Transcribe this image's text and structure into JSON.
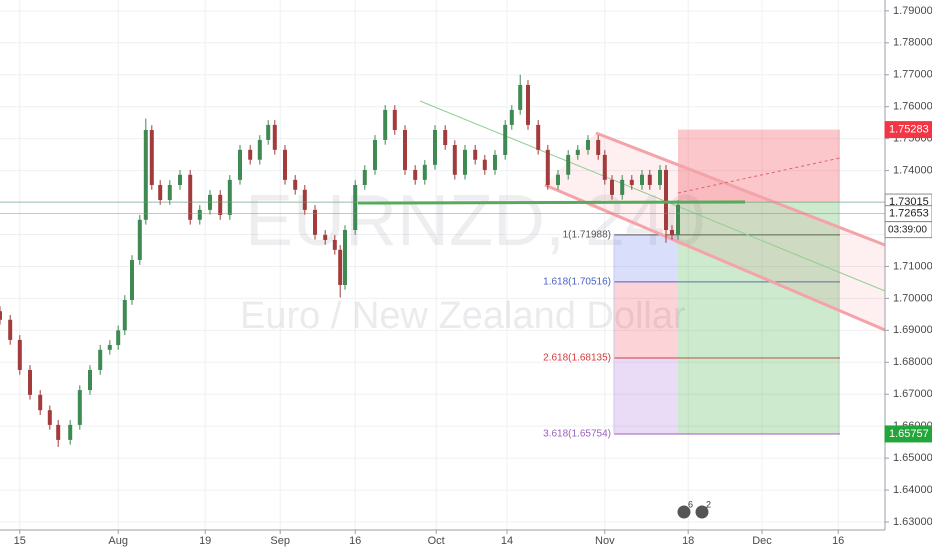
{
  "chart_data": {
    "type": "candlestick",
    "watermark": {
      "symbol": "EURNZD, 240",
      "name": "Euro / New Zealand Dollar"
    },
    "x": [
      0,
      1.7,
      3.3,
      5,
      6.7,
      8.3,
      9.7,
      11.7,
      13.3,
      15,
      16.7,
      18.3,
      19.7,
      20.8,
      22,
      23.3,
      24.3,
      25.3,
      26.7,
      28.3,
      30,
      31.7,
      33.3,
      35,
      36.7,
      38.3,
      40,
      41.7,
      43.3,
      44.7,
      45.8,
      47.5,
      49.2,
      50.8,
      52.5,
      54.2,
      55.8,
      56.7,
      57.5,
      59.2,
      60.8,
      62.5,
      64.2,
      65.8,
      67.5,
      69.2,
      70.8,
      72.5,
      74.2,
      75.8,
      77.5,
      79.2,
      80.8,
      82.5,
      84.2,
      85.3,
      86.7,
      88,
      89.7,
      91.3,
      93,
      94.7,
      96.3,
      98,
      99.7,
      100.8,
      102,
      103.7,
      105.3,
      107,
      108.3,
      110,
      111,
      112,
      113
    ],
    "open": [
      1.696,
      1.6933,
      1.687,
      1.6776,
      1.6698,
      1.665,
      1.6604,
      1.6557,
      1.6604,
      1.6713,
      1.6776,
      1.6839,
      1.6854,
      1.69,
      1.6995,
      1.712,
      1.7246,
      1.7527,
      1.7355,
      1.7308,
      1.7355,
      1.7387,
      1.7246,
      1.7277,
      1.7324,
      1.7261,
      1.7371,
      1.7465,
      1.7434,
      1.7496,
      1.7543,
      1.7465,
      1.7371,
      1.734,
      1.7277,
      1.7199,
      1.7183,
      1.7152,
      1.7042,
      1.7214,
      1.7355,
      1.7402,
      1.7496,
      1.759,
      1.7527,
      1.7402,
      1.7371,
      1.7418,
      1.7527,
      1.748,
      1.7387,
      1.7465,
      1.7434,
      1.7402,
      1.7449,
      1.7543,
      1.759,
      1.7668,
      1.7543,
      1.7465,
      1.7355,
      1.7387,
      1.7449,
      1.7465,
      1.7496,
      1.7449,
      1.7371,
      1.7324,
      1.7371,
      1.7355,
      1.7387,
      1.7355,
      1.7402,
      1.7214,
      1.7199
    ],
    "high": [
      1.6975,
      1.6948,
      1.6885,
      1.6791,
      1.6713,
      1.6665,
      1.6619,
      1.6619,
      1.6728,
      1.6791,
      1.6854,
      1.6869,
      1.6915,
      1.701,
      1.7135,
      1.7261,
      1.7563,
      1.7542,
      1.737,
      1.737,
      1.7402,
      1.7402,
      1.7292,
      1.7339,
      1.7339,
      1.7386,
      1.748,
      1.748,
      1.7511,
      1.7558,
      1.7558,
      1.748,
      1.7386,
      1.7355,
      1.7292,
      1.7214,
      1.7198,
      1.7167,
      1.7229,
      1.737,
      1.7417,
      1.7511,
      1.7605,
      1.7605,
      1.7542,
      1.7417,
      1.7433,
      1.7542,
      1.7542,
      1.7495,
      1.748,
      1.748,
      1.7449,
      1.7464,
      1.7558,
      1.7605,
      1.77,
      1.7683,
      1.7558,
      1.748,
      1.7402,
      1.7464,
      1.748,
      1.7511,
      1.7511,
      1.7464,
      1.7386,
      1.7386,
      1.7386,
      1.7402,
      1.7402,
      1.7417,
      1.7417,
      1.7229,
      1.7308
    ],
    "low": [
      1.6918,
      1.6855,
      1.6761,
      1.6683,
      1.6635,
      1.6589,
      1.6535,
      1.6542,
      1.6589,
      1.6698,
      1.6761,
      1.6824,
      1.6839,
      1.6885,
      1.698,
      1.7105,
      1.7231,
      1.734,
      1.7293,
      1.7293,
      1.734,
      1.7231,
      1.7231,
      1.7262,
      1.7246,
      1.7246,
      1.7356,
      1.7419,
      1.7419,
      1.7481,
      1.745,
      1.7356,
      1.7325,
      1.7262,
      1.7184,
      1.7168,
      1.7137,
      1.7003,
      1.7027,
      1.7199,
      1.734,
      1.7387,
      1.7481,
      1.7512,
      1.7387,
      1.7356,
      1.7356,
      1.7403,
      1.7465,
      1.7372,
      1.7372,
      1.7419,
      1.7387,
      1.7387,
      1.7434,
      1.7528,
      1.7575,
      1.7528,
      1.745,
      1.734,
      1.734,
      1.7372,
      1.7434,
      1.745,
      1.7434,
      1.7356,
      1.7309,
      1.7309,
      1.734,
      1.734,
      1.734,
      1.734,
      1.7174,
      1.7184,
      1.7184
    ],
    "close": [
      1.6933,
      1.687,
      1.6776,
      1.6698,
      1.665,
      1.6604,
      1.6557,
      1.6604,
      1.6713,
      1.6776,
      1.6839,
      1.6854,
      1.69,
      1.6995,
      1.712,
      1.7246,
      1.7527,
      1.7355,
      1.7308,
      1.7355,
      1.7387,
      1.7246,
      1.7277,
      1.7324,
      1.7261,
      1.7371,
      1.7465,
      1.7434,
      1.7496,
      1.7543,
      1.7465,
      1.7371,
      1.734,
      1.7277,
      1.7199,
      1.7183,
      1.7152,
      1.7042,
      1.7214,
      1.7355,
      1.7402,
      1.7496,
      1.759,
      1.7527,
      1.7402,
      1.7371,
      1.7418,
      1.7527,
      1.748,
      1.7387,
      1.7465,
      1.7434,
      1.7402,
      1.7449,
      1.7543,
      1.759,
      1.7668,
      1.7543,
      1.7465,
      1.7355,
      1.7387,
      1.7449,
      1.7465,
      1.7496,
      1.7449,
      1.7371,
      1.7324,
      1.7371,
      1.7355,
      1.7387,
      1.7355,
      1.7402,
      1.7214,
      1.7199,
      1.7293
    ],
    "up_color": "#3f8a52",
    "down_color": "#a23b3b",
    "xlim": [
      0,
      147.5
    ],
    "ylim": [
      1.6275,
      1.7934
    ],
    "xticks": [
      {
        "value": 3.3,
        "label": "15"
      },
      {
        "value": 19.7,
        "label": "Aug"
      },
      {
        "value": 34.2,
        "label": "19"
      },
      {
        "value": 46.7,
        "label": "Sep"
      },
      {
        "value": 59.2,
        "label": "16"
      },
      {
        "value": 72.7,
        "label": "Oct"
      },
      {
        "value": 84.5,
        "label": "14"
      },
      {
        "value": 100.8,
        "label": "Nov"
      },
      {
        "value": 114.7,
        "label": "18"
      },
      {
        "value": 127,
        "label": "Dec"
      },
      {
        "value": 139.7,
        "label": "16"
      }
    ],
    "yticks": [
      {
        "value": 1.63,
        "label": "1.63000"
      },
      {
        "value": 1.64,
        "label": "1.64000"
      },
      {
        "value": 1.65,
        "label": "1.65000"
      },
      {
        "value": 1.66,
        "label": "1.66000"
      },
      {
        "value": 1.67,
        "label": "1.67000"
      },
      {
        "value": 1.68,
        "label": "1.68000"
      },
      {
        "value": 1.69,
        "label": "1.69000"
      },
      {
        "value": 1.7,
        "label": "1.70000"
      },
      {
        "value": 1.71,
        "label": "1.71000"
      },
      {
        "value": 1.72,
        "label": "1.72000"
      },
      {
        "value": 1.73,
        "label": "1.73000"
      },
      {
        "value": 1.74,
        "label": "1.74000"
      },
      {
        "value": 1.75,
        "label": "1.75000"
      },
      {
        "value": 1.76,
        "label": "1.76000"
      },
      {
        "value": 1.77,
        "label": "1.77000"
      },
      {
        "value": 1.78,
        "label": "1.78000"
      },
      {
        "value": 1.79,
        "label": "1.79000"
      }
    ],
    "grid": true,
    "price_labels": [
      {
        "value": 1.75283,
        "label": "1.75283",
        "color": "#f23645"
      },
      {
        "value": 1.73015,
        "label": "1.73015",
        "color": "#ffffff"
      },
      {
        "value": 1.72653,
        "label": "1.72653",
        "color": "#ffffff"
      },
      {
        "value": 1.65757,
        "label": "1.65757",
        "color": "#22a63a"
      }
    ],
    "countdown": "03:39:00",
    "fib_levels": [
      {
        "value": 1.71988,
        "label": "1(1.71988)",
        "color": "#555555"
      },
      {
        "value": 1.70516,
        "label": "1.618(1.70516)",
        "color": "#4a62c9"
      },
      {
        "value": 1.68135,
        "label": "2.618(1.68135)",
        "color": "#d63b3b"
      },
      {
        "value": 1.65754,
        "label": "3.618(1.65754)",
        "color": "#9b5fc0"
      }
    ],
    "badges": [
      "6",
      "2"
    ]
  }
}
